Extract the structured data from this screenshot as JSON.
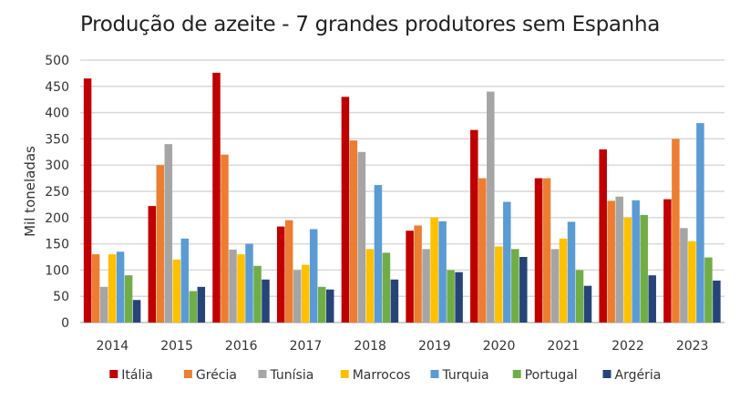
{
  "chart_data": {
    "type": "bar",
    "title": "Produção de azeite  - 7 grandes produtores sem Espanha",
    "xlabel": "",
    "ylabel": "Mil toneladas",
    "ylim": [
      0,
      500
    ],
    "yticks": [
      0,
      50,
      100,
      150,
      200,
      250,
      300,
      350,
      400,
      450,
      500
    ],
    "grid": true,
    "legend_position": "bottom",
    "categories": [
      "2014",
      "2015",
      "2016",
      "2017",
      "2018",
      "2019",
      "2020",
      "2021",
      "2022",
      "2023"
    ],
    "series": [
      {
        "name": "Itália",
        "color": "#C00000",
        "values": [
          465,
          222,
          476,
          183,
          430,
          175,
          367,
          275,
          330,
          235
        ]
      },
      {
        "name": "Grécia",
        "color": "#ED7D31",
        "values": [
          130,
          300,
          320,
          195,
          347,
          185,
          275,
          275,
          232,
          350
        ]
      },
      {
        "name": "Tunísia",
        "color": "#A5A5A5",
        "values": [
          68,
          340,
          139,
          100,
          325,
          140,
          440,
          140,
          240,
          180
        ]
      },
      {
        "name": "Marrocos",
        "color": "#FFC000",
        "values": [
          130,
          120,
          130,
          110,
          140,
          200,
          145,
          160,
          200,
          155
        ]
      },
      {
        "name": "Turquia",
        "color": "#5B9BD5",
        "values": [
          135,
          160,
          150,
          178,
          262,
          193,
          230,
          192,
          233,
          380
        ]
      },
      {
        "name": "Portugal",
        "color": "#70AD47",
        "values": [
          90,
          60,
          108,
          68,
          133,
          100,
          140,
          100,
          205,
          124
        ]
      },
      {
        "name": "Argéria",
        "color": "#264478",
        "values": [
          43,
          68,
          82,
          63,
          82,
          96,
          125,
          70,
          90,
          80
        ]
      }
    ]
  }
}
